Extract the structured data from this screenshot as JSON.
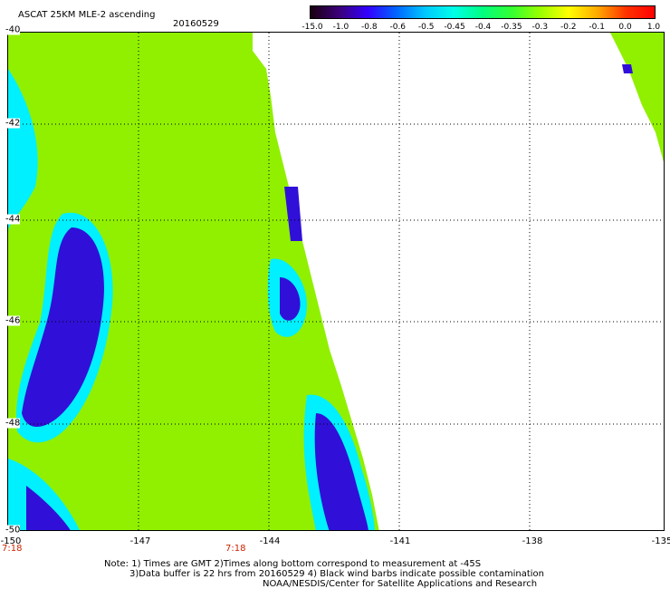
{
  "title": "ASCAT 25KM MLE-2 ascending",
  "date": "20160529",
  "colorbar": {
    "labels": [
      "-15.0",
      "-1.0",
      "-0.8",
      "-0.6",
      "-0.5",
      "-0.45",
      "-0.4",
      "-0.35",
      "-0.3",
      "-0.2",
      "-0.1",
      "0.0",
      "1.0"
    ],
    "colors": [
      "#1a0010",
      "#3b007a",
      "#3300ff",
      "#0066ff",
      "#00c8ff",
      "#00ffe8",
      "#00ff80",
      "#33ff33",
      "#99ff00",
      "#ffff00",
      "#ffaa00",
      "#ff3300",
      "#ff0000"
    ]
  },
  "map": {
    "lon_ticks": [
      "-150",
      "-147",
      "-144",
      "-141",
      "-138",
      "-135"
    ],
    "lat_ticks": [
      "-40",
      "-42",
      "-44",
      "-46",
      "-48",
      "-50"
    ],
    "time_labels": [
      "7:18",
      "7:18"
    ],
    "lon_range": [
      -150,
      -135
    ],
    "lat_range": [
      -40,
      -50
    ],
    "land_color": "#ffffff",
    "field_colors": {
      "low": "#3010d8",
      "mid": "#00f0ff",
      "high": "#90f000"
    }
  },
  "notes": {
    "line1": "Note: 1) Times are GMT 2)Times along bottom correspond to measurement at -45S",
    "line2": "3)Data buffer is 22 hrs from 20160529 4) Black wind barbs indicate possible contamination",
    "line3": "NOAA/NESDIS/Center for Satellite Applications and Research"
  }
}
